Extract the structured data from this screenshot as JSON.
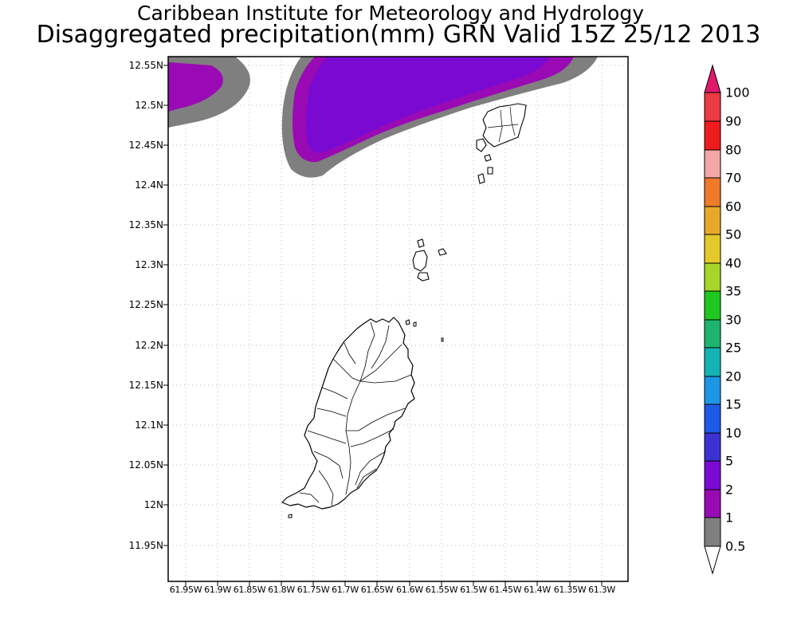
{
  "title": {
    "line1": "Caribbean Institute for Meteorology and Hydrology",
    "line2": "Disaggregated precipitation(mm) GRN Valid 15Z 25/12 2013"
  },
  "map": {
    "lat_labels": [
      "12.55N",
      "12.5N",
      "12.45N",
      "12.4N",
      "12.35N",
      "12.3N",
      "12.25N",
      "12.2N",
      "12.15N",
      "12.1N",
      "12.05N",
      "12N",
      "11.95N"
    ],
    "lon_labels": [
      "61.95W",
      "61.9W",
      "61.85W",
      "61.8W",
      "61.75W",
      "61.7W",
      "61.65W",
      "61.6W",
      "61.55W",
      "61.5W",
      "61.45W",
      "61.4W",
      "61.35W",
      "61.3W"
    ],
    "grid": true,
    "features": [
      "Grenada",
      "Carriacou and Grenadine islands",
      "precipitation shading over northwest"
    ]
  },
  "colorbar": {
    "labels": [
      "100",
      "90",
      "80",
      "70",
      "60",
      "50",
      "40",
      "35",
      "30",
      "25",
      "20",
      "15",
      "10",
      "5",
      "2",
      "1",
      "0.5"
    ],
    "colors": [
      "#e0196b",
      "#ea3a44",
      "#ee1c1c",
      "#f5a6a6",
      "#ee7a2a",
      "#e6a92a",
      "#e3c92a",
      "#a6d62a",
      "#1ec81e",
      "#1eb46e",
      "#14b4b4",
      "#1e96e6",
      "#1e5ae6",
      "#3c32d2",
      "#7a0ad2",
      "#9a0ab4",
      "#7f7f7f"
    ]
  }
}
